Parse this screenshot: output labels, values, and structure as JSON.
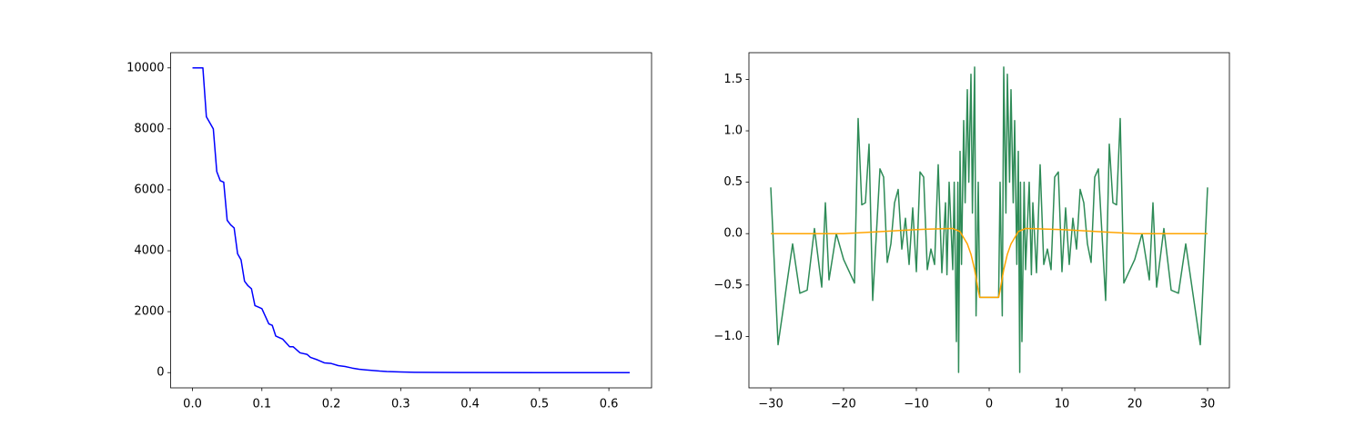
{
  "chart_data": [
    {
      "type": "line",
      "xlim": [
        -0.0315,
        0.6615
      ],
      "ylim": [
        -500,
        10500
      ],
      "xticks": [
        {
          "value": 0,
          "label": "0.0"
        },
        0.1,
        0.2,
        0.3,
        0.4,
        0.5,
        0.6
      ],
      "yticks": [
        0,
        2000,
        4000,
        6000,
        8000,
        10000
      ],
      "series": [
        {
          "color": "#0000ff",
          "x": [
            0,
            0.005,
            0.015,
            0.02,
            0.03,
            0.035,
            0.04,
            0.045,
            0.05,
            0.055,
            0.06,
            0.065,
            0.07,
            0.075,
            0.08,
            0.085,
            0.09,
            0.095,
            0.1,
            0.11,
            0.115,
            0.12,
            0.125,
            0.13,
            0.14,
            0.145,
            0.155,
            0.165,
            0.17,
            0.18,
            0.19,
            0.2,
            0.21,
            0.22,
            0.23,
            0.24,
            0.25,
            0.26,
            0.27,
            0.28,
            0.3,
            0.32,
            0.35,
            0.4,
            0.5,
            0.63
          ],
          "values": [
            10000,
            10000,
            10000,
            8400,
            8000,
            6600,
            6300,
            6250,
            5000,
            4850,
            4750,
            3900,
            3700,
            3000,
            2850,
            2750,
            2200,
            2150,
            2100,
            1600,
            1550,
            1200,
            1150,
            1100,
            850,
            850,
            650,
            600,
            500,
            420,
            320,
            300,
            230,
            200,
            150,
            110,
            90,
            70,
            50,
            35,
            20,
            10,
            5,
            2,
            0,
            0
          ]
        }
      ]
    },
    {
      "type": "line",
      "xlim": [
        -33,
        33
      ],
      "ylim": [
        -1.5,
        1.76
      ],
      "xticks": [
        {
          "value": -30,
          "label": "−30"
        },
        {
          "value": -20,
          "label": "−20"
        },
        {
          "value": -10,
          "label": "−10"
        },
        0,
        10,
        20,
        30
      ],
      "yticks": [
        {
          "value": -1,
          "label": "−1.0"
        },
        {
          "value": -0.5,
          "label": "−0.5"
        },
        {
          "value": 0,
          "label": "0.0"
        },
        0.5,
        {
          "value": 1,
          "label": "1.0"
        },
        1.5
      ],
      "series": [
        {
          "color": "#2e8b57",
          "x": [
            -30,
            -29,
            -27,
            -26,
            -25,
            -24,
            -23,
            -22.5,
            -22,
            -21,
            -20,
            -18.5,
            -18,
            -17.5,
            -17,
            -16.5,
            -16,
            -15,
            -14.5,
            -14,
            -13.5,
            -13,
            -12.5,
            -12,
            -11.5,
            -11,
            -10.5,
            -10,
            -9.5,
            -9,
            -8.5,
            -8,
            -7.5,
            -7,
            -6.5,
            -6,
            -5.8,
            -5.5,
            -5,
            -4.8,
            -4.5,
            -4.3,
            -4.2,
            -4,
            -3.8,
            -3.5,
            -3.3,
            -3,
            -2.8,
            -2.5,
            -2.3,
            -2,
            -1.8,
            -1.5,
            -1.3,
            1.3,
            1.5,
            1.8,
            2,
            2.3,
            2.5,
            2.8,
            3,
            3.3,
            3.5,
            3.8,
            4,
            4.2,
            4.3,
            4.5,
            4.8,
            5,
            5.5,
            5.8,
            6,
            6.5,
            7,
            7.5,
            8,
            8.5,
            9,
            9.5,
            10,
            10.5,
            11,
            11.5,
            12,
            12.5,
            13,
            13.5,
            14,
            14.5,
            15,
            16,
            16.5,
            17,
            17.5,
            18,
            18.5,
            20,
            21,
            22,
            22.5,
            23,
            24,
            25,
            26,
            27,
            29,
            30
          ],
          "values": [
            0.45,
            -1.08,
            -0.1,
            -0.58,
            -0.55,
            0.05,
            -0.52,
            0.3,
            -0.45,
            0,
            -0.25,
            -0.48,
            1.12,
            0.28,
            0.3,
            0.87,
            -0.65,
            0.63,
            0.55,
            -0.28,
            -0.1,
            0.3,
            0.43,
            -0.15,
            0.15,
            -0.3,
            0.25,
            -0.37,
            0.6,
            0.55,
            -0.35,
            -0.15,
            -0.3,
            0.67,
            -0.38,
            0.3,
            -0.4,
            0.5,
            -0.35,
            0.5,
            -1.05,
            0.5,
            -1.35,
            0.8,
            -0.3,
            1.1,
            0.3,
            1.4,
            0.5,
            1.55,
            0.2,
            1.62,
            -0.8,
            0.5,
            -0.62,
            -0.62,
            0.5,
            -0.8,
            1.62,
            0.2,
            1.55,
            0.5,
            1.4,
            0.3,
            1.1,
            -0.3,
            0.8,
            -1.35,
            0.5,
            -1.05,
            0.5,
            -0.35,
            0.5,
            -0.4,
            0.3,
            -0.38,
            0.67,
            -0.3,
            -0.15,
            -0.35,
            0.55,
            0.6,
            -0.37,
            0.25,
            -0.3,
            0.15,
            -0.15,
            0.43,
            0.3,
            -0.1,
            -0.28,
            0.55,
            0.63,
            -0.65,
            0.87,
            0.3,
            0.28,
            1.12,
            -0.48,
            -0.25,
            0,
            -0.45,
            0.3,
            -0.52,
            0.05,
            -0.55,
            -0.58,
            -0.1,
            -1.08,
            0.45
          ]
        },
        {
          "color": "#ffa500",
          "x": [
            -30,
            -25,
            -20,
            -15,
            -10,
            -5,
            -4,
            -3,
            -2.5,
            -2,
            -1.5,
            -1.3,
            1.3,
            1.5,
            2,
            2.5,
            3,
            4,
            5,
            10,
            15,
            20,
            25,
            30
          ],
          "values": [
            0,
            0,
            0,
            0.02,
            0.04,
            0.05,
            0.02,
            -0.1,
            -0.2,
            -0.35,
            -0.55,
            -0.62,
            -0.62,
            -0.55,
            -0.35,
            -0.2,
            -0.1,
            0.02,
            0.05,
            0.04,
            0.02,
            0,
            0,
            0
          ]
        }
      ]
    }
  ]
}
